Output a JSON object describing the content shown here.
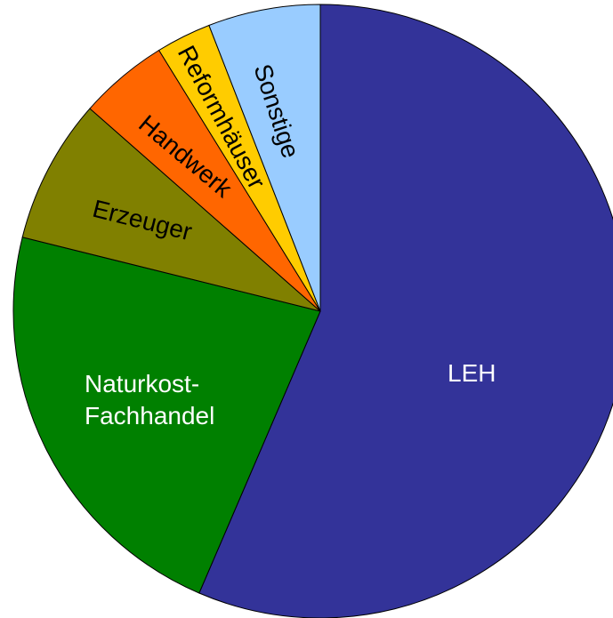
{
  "chart_data": {
    "type": "pie",
    "categories": [
      "LEH",
      "Naturkost-\nFachhandel",
      "Erzeuger",
      "Handwerk",
      "Reformhäuser",
      "Sonstige"
    ],
    "values": [
      56.4,
      22.4,
      7.6,
      4.7,
      2.9,
      5.9
    ],
    "colors": [
      "#333399",
      "#008000",
      "#808000",
      "#ff6600",
      "#ffcc00",
      "#99ccff"
    ]
  }
}
